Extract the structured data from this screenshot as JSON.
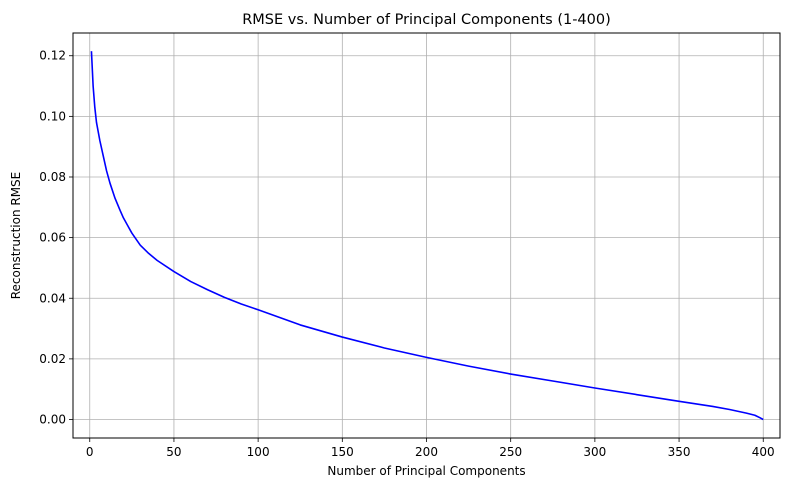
{
  "chart_data": {
    "type": "line",
    "title": "RMSE vs. Number of Principal Components (1-400)",
    "xlabel": "Number of Principal Components",
    "ylabel": "Reconstruction RMSE",
    "xlim": [
      -9.95,
      409.95
    ],
    "ylim": [
      -0.0061,
      0.1275
    ],
    "xticks": [
      0,
      50,
      100,
      150,
      200,
      250,
      300,
      350,
      400
    ],
    "xtick_labels": [
      "0",
      "50",
      "100",
      "150",
      "200",
      "250",
      "300",
      "350",
      "400"
    ],
    "yticks": [
      0.0,
      0.02,
      0.04,
      0.06,
      0.08,
      0.1,
      0.12
    ],
    "ytick_labels": [
      "0.00",
      "0.02",
      "0.04",
      "0.06",
      "0.08",
      "0.10",
      "0.12"
    ],
    "grid": true,
    "series": [
      {
        "color": "#0000ff",
        "x": [
          1,
          2,
          3,
          4,
          5,
          6,
          8,
          10,
          12,
          15,
          18,
          20,
          25,
          30,
          35,
          40,
          50,
          60,
          70,
          80,
          90,
          100,
          125,
          150,
          175,
          200,
          225,
          250,
          275,
          300,
          325,
          350,
          370,
          380,
          390,
          395,
          398,
          400
        ],
        "y": [
          0.1215,
          0.11,
          0.103,
          0.098,
          0.095,
          0.092,
          0.087,
          0.082,
          0.078,
          0.073,
          0.069,
          0.0665,
          0.0615,
          0.0575,
          0.0548,
          0.0525,
          0.0488,
          0.0455,
          0.0428,
          0.0403,
          0.0381,
          0.0362,
          0.0312,
          0.0272,
          0.0236,
          0.0205,
          0.0176,
          0.015,
          0.0127,
          0.0104,
          0.0082,
          0.006,
          0.0043,
          0.0033,
          0.0021,
          0.0014,
          0.0006,
          0.0
        ]
      }
    ]
  }
}
